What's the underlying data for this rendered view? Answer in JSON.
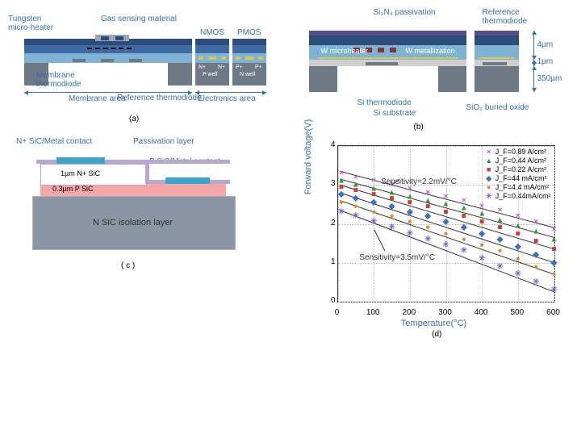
{
  "panelA": {
    "labels": {
      "tungsten": "Tungsten\nmicro-heater",
      "gasSensing": "Gas sensing material",
      "nmos": "NMOS",
      "pmos": "PMOS",
      "membraneThermodiode": "Membrane\nthermodiode",
      "refThermodiode": "Reference\nthermodiode",
      "membraneArea": "Membrane area",
      "electronicsArea": "Electronics area",
      "npwell1": "N+",
      "pwell": "P well",
      "npwell2": "N+",
      "ppwell1": "P+",
      "nwell": "N well",
      "ppwell2": "P+"
    },
    "colors": {
      "darkBlue": "#2c4d7a",
      "midBlue": "#3e6ba3",
      "lightBlue": "#7fb3d5",
      "substrate": "#6d7a85",
      "gas": "#9aa6b0"
    },
    "caption": "(a)"
  },
  "panelB": {
    "labels": {
      "passivation": "Si₃N₄ passivation",
      "refThermodiode": "Reference\nthermodiode",
      "wHeater": "W microheater",
      "wMetal": "W metallization",
      "siThermodiode": "Si thermodiode",
      "siSubstrate": "Si substrate",
      "buriedOxide": "SiO₂ buried oxide",
      "d4um": "4µm",
      "d1um": "1µm",
      "d350um": "350µm"
    },
    "colors": {
      "passivation": "#5a4d8a",
      "darkBlue": "#2c4d7a",
      "midBlue": "#7fb3d5",
      "oxide": "#cfcfcf",
      "substrate": "#6d7a85",
      "wMetal": "#d9c94a"
    },
    "caption": "(b)"
  },
  "panelC": {
    "labels": {
      "nContact": "N+ SiC/Metal contact",
      "passivation": "Passivation layer",
      "nSiC": "1µm N+ SiC",
      "pContact": "P SiC/Metal contact",
      "pSiC": "0.3µm P SiC",
      "isolation": "N SiC isolation layer"
    },
    "colors": {
      "contact": "#3aa6c9",
      "passiv": "#b8a8d0",
      "nSiC": "#ffffff",
      "pSiC": "#f5a7a7",
      "iso": "#8a96a3"
    },
    "caption": "( c )"
  },
  "panelD": {
    "xlabel": "Temperature(°C)",
    "ylabel": "Forward voltage(V)",
    "xlim": [
      0,
      600
    ],
    "ylim": [
      0,
      4
    ],
    "xticks": [
      0,
      100,
      200,
      300,
      400,
      500,
      600
    ],
    "yticks": [
      0,
      1,
      2,
      3,
      4
    ],
    "annot1": "Sensitivity=2.2mV/°C",
    "annot2": "Sensitivity=3.5mV/°C",
    "caption": "(d)",
    "series": [
      {
        "label": "J_F=0.89 A/cm²",
        "marker": "×",
        "color": "#d94fd9",
        "data": [
          [
            10,
            3.3
          ],
          [
            50,
            3.2
          ],
          [
            100,
            3.1
          ],
          [
            150,
            3.0
          ],
          [
            200,
            2.9
          ],
          [
            250,
            2.8
          ],
          [
            300,
            2.7
          ],
          [
            350,
            2.6
          ],
          [
            400,
            2.45
          ],
          [
            450,
            2.35
          ],
          [
            500,
            2.2
          ],
          [
            550,
            2.05
          ],
          [
            600,
            1.85
          ]
        ]
      },
      {
        "label": "J_F=0.44 A/cm²",
        "marker": "▲",
        "color": "#2a9d2a",
        "data": [
          [
            10,
            3.1
          ],
          [
            50,
            3.0
          ],
          [
            100,
            2.9
          ],
          [
            150,
            2.8
          ],
          [
            200,
            2.7
          ],
          [
            250,
            2.6
          ],
          [
            300,
            2.5
          ],
          [
            350,
            2.4
          ],
          [
            400,
            2.25
          ],
          [
            450,
            2.1
          ],
          [
            500,
            1.95
          ],
          [
            550,
            1.8
          ],
          [
            600,
            1.6
          ]
        ]
      },
      {
        "label": "J_F=0.22 A/cm²",
        "marker": "■",
        "color": "#d93636",
        "data": [
          [
            10,
            2.95
          ],
          [
            50,
            2.85
          ],
          [
            100,
            2.75
          ],
          [
            150,
            2.65
          ],
          [
            200,
            2.55
          ],
          [
            250,
            2.45
          ],
          [
            300,
            2.3
          ],
          [
            350,
            2.2
          ],
          [
            400,
            2.05
          ],
          [
            450,
            1.9
          ],
          [
            500,
            1.75
          ],
          [
            550,
            1.55
          ],
          [
            600,
            1.35
          ]
        ]
      },
      {
        "label": "J_F=44 mA/cm²",
        "marker": "◆",
        "color": "#3a6ecf",
        "data": [
          [
            10,
            2.75
          ],
          [
            50,
            2.65
          ],
          [
            100,
            2.55
          ],
          [
            150,
            2.45
          ],
          [
            200,
            2.3
          ],
          [
            250,
            2.2
          ],
          [
            300,
            2.05
          ],
          [
            350,
            1.9
          ],
          [
            400,
            1.75
          ],
          [
            450,
            1.6
          ],
          [
            500,
            1.4
          ],
          [
            550,
            1.2
          ],
          [
            600,
            1.0
          ]
        ]
      },
      {
        "label": "J_F=4.4 mA/cm²",
        "marker": "●",
        "color": "#e68a1f",
        "data": [
          [
            10,
            2.55
          ],
          [
            50,
            2.45
          ],
          [
            100,
            2.3
          ],
          [
            150,
            2.2
          ],
          [
            200,
            2.05
          ],
          [
            250,
            1.9
          ],
          [
            300,
            1.75
          ],
          [
            350,
            1.6
          ],
          [
            400,
            1.45
          ],
          [
            450,
            1.3
          ],
          [
            500,
            1.1
          ],
          [
            550,
            0.9
          ],
          [
            600,
            0.7
          ]
        ]
      },
      {
        "label": "J_F=0.44mA/cm²",
        "marker": "✳",
        "color": "#7a5fcf",
        "data": [
          [
            10,
            2.3
          ],
          [
            50,
            2.2
          ],
          [
            100,
            2.05
          ],
          [
            150,
            1.9
          ],
          [
            200,
            1.75
          ],
          [
            250,
            1.6
          ],
          [
            300,
            1.45
          ],
          [
            350,
            1.3
          ],
          [
            400,
            1.1
          ],
          [
            450,
            0.9
          ],
          [
            500,
            0.7
          ],
          [
            550,
            0.5
          ],
          [
            600,
            0.3
          ]
        ]
      }
    ],
    "fitLines": [
      [
        [
          5,
          3.35
        ],
        [
          600,
          1.9
        ]
      ],
      [
        [
          5,
          3.15
        ],
        [
          600,
          1.65
        ]
      ],
      [
        [
          5,
          3.0
        ],
        [
          600,
          1.35
        ]
      ],
      [
        [
          5,
          2.8
        ],
        [
          600,
          1.0
        ]
      ],
      [
        [
          5,
          2.6
        ],
        [
          600,
          0.7
        ]
      ],
      [
        [
          5,
          2.35
        ],
        [
          600,
          0.25
        ]
      ]
    ]
  }
}
